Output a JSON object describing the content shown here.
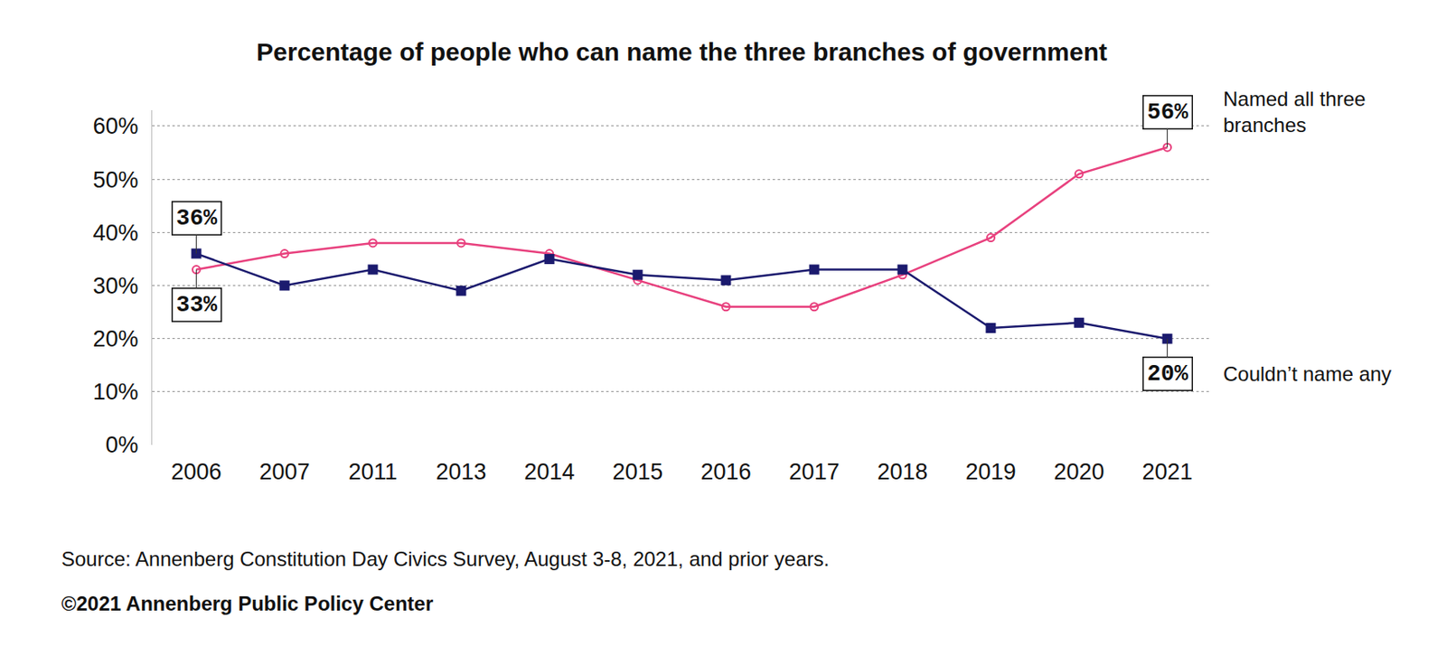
{
  "chart_data": {
    "type": "line",
    "title": "Percentage of people who can name the three branches of government",
    "source": "Source: Annenberg Constitution Day Civics Survey, August 3-8, 2021, and prior years.",
    "credit": "©2021 Annenberg Public Policy Center",
    "categories": [
      "2006",
      "2007",
      "2011",
      "2013",
      "2014",
      "2015",
      "2016",
      "2017",
      "2018",
      "2019",
      "2020",
      "2021"
    ],
    "series": [
      {
        "name": "Named all three branches",
        "color": "#e8417e",
        "marker": "circle-open",
        "values": [
          33,
          36,
          38,
          38,
          36,
          31,
          26,
          26,
          32,
          39,
          51,
          56
        ],
        "value_labels": [
          "33%",
          null,
          null,
          null,
          null,
          null,
          null,
          null,
          null,
          null,
          null,
          "56%"
        ]
      },
      {
        "name": "Couldn’t name any",
        "color": "#1b1a6e",
        "marker": "square",
        "values": [
          36,
          30,
          33,
          29,
          35,
          32,
          31,
          33,
          33,
          22,
          23,
          20
        ],
        "value_labels": [
          "36%",
          null,
          null,
          null,
          null,
          null,
          null,
          null,
          null,
          null,
          null,
          "20%"
        ]
      }
    ],
    "ylim": [
      0,
      63
    ],
    "yticks": [
      {
        "value": 0,
        "label": "0%"
      },
      {
        "value": 10,
        "label": "10%"
      },
      {
        "value": 20,
        "label": "20%"
      },
      {
        "value": 30,
        "label": "30%"
      },
      {
        "value": 40,
        "label": "40%"
      },
      {
        "value": 50,
        "label": "50%"
      },
      {
        "value": 60,
        "label": "60%"
      }
    ],
    "grid": true
  }
}
